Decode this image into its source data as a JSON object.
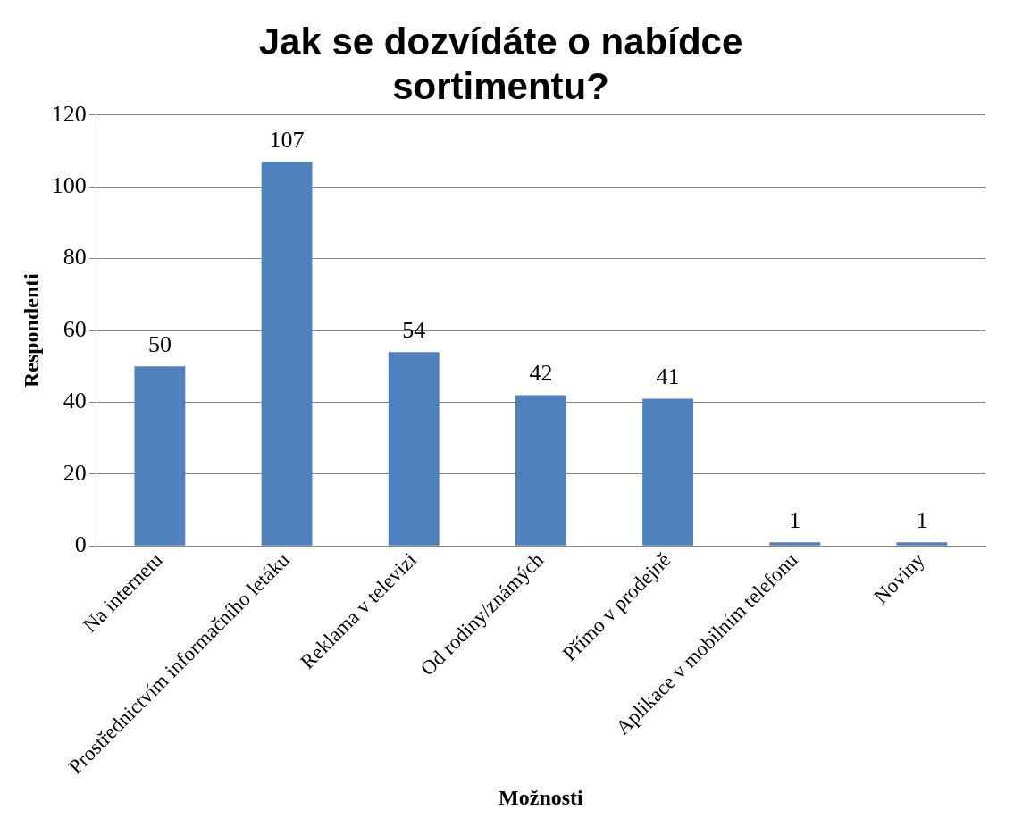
{
  "chart_data": {
    "type": "bar",
    "title": "Jak se dozvídáte o nabídce sortimentu?",
    "xlabel": "Možnosti",
    "ylabel": "Respondenti",
    "categories": [
      "Na internetu",
      "Prostřednictvím informačního letáku",
      "Reklama v televizi",
      "Od rodiny/známých",
      "Přímo v prodejně",
      "Aplikace v mobilním telefonu",
      "Noviny"
    ],
    "values": [
      50,
      107,
      54,
      42,
      41,
      1,
      1
    ],
    "color": "#4f81bd",
    "ylim": [
      0,
      120
    ],
    "yticks": [
      0,
      20,
      40,
      60,
      80,
      100,
      120
    ],
    "grid": "y",
    "data_labels": true,
    "legend": false
  }
}
